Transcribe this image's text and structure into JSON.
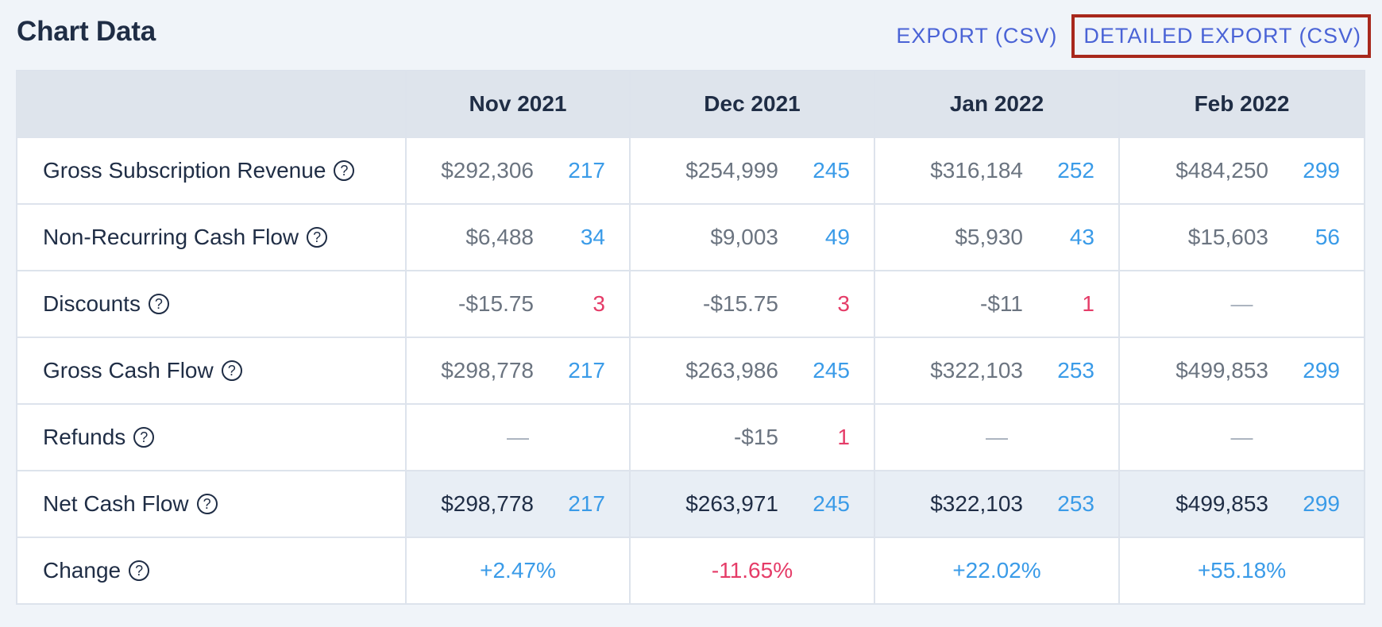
{
  "title": "Chart Data",
  "exports": {
    "export_csv": "EXPORT (CSV)",
    "detailed_export_csv": "DETAILED EXPORT (CSV)"
  },
  "help_glyph": "?",
  "columns": [
    "Nov 2021",
    "Dec 2021",
    "Jan 2022",
    "Feb 2022"
  ],
  "rows": [
    {
      "label": "Gross Subscription Revenue",
      "cells": [
        {
          "amount": "$292,306",
          "count": "217"
        },
        {
          "amount": "$254,999",
          "count": "245"
        },
        {
          "amount": "$316,184",
          "count": "252"
        },
        {
          "amount": "$484,250",
          "count": "299"
        }
      ]
    },
    {
      "label": "Non-Recurring Cash Flow",
      "cells": [
        {
          "amount": "$6,488",
          "count": "34"
        },
        {
          "amount": "$9,003",
          "count": "49"
        },
        {
          "amount": "$5,930",
          "count": "43"
        },
        {
          "amount": "$15,603",
          "count": "56"
        }
      ]
    },
    {
      "label": "Discounts",
      "cells": [
        {
          "amount": "-$15.75",
          "count": "3"
        },
        {
          "amount": "-$15.75",
          "count": "3"
        },
        {
          "amount": "-$11",
          "count": "1"
        },
        {
          "empty": "—"
        }
      ]
    },
    {
      "label": "Gross Cash Flow",
      "cells": [
        {
          "amount": "$298,778",
          "count": "217"
        },
        {
          "amount": "$263,986",
          "count": "245"
        },
        {
          "amount": "$322,103",
          "count": "253"
        },
        {
          "amount": "$499,853",
          "count": "299"
        }
      ]
    },
    {
      "label": "Refunds",
      "cells": [
        {
          "empty": "—"
        },
        {
          "amount": "-$15",
          "count": "1"
        },
        {
          "empty": "—"
        },
        {
          "empty": "—"
        }
      ]
    },
    {
      "label": "Net Cash Flow",
      "cells": [
        {
          "amount": "$298,778",
          "count": "217"
        },
        {
          "amount": "$263,971",
          "count": "245"
        },
        {
          "amount": "$322,103",
          "count": "253"
        },
        {
          "amount": "$499,853",
          "count": "299"
        }
      ]
    },
    {
      "label": "Change",
      "cells": [
        {
          "change": "+2.47%"
        },
        {
          "change": "-11.65%"
        },
        {
          "change": "+22.02%"
        },
        {
          "change": "+55.18%"
        }
      ]
    }
  ],
  "colors": {
    "positive": "#3a9be8",
    "negative": "#e53c68",
    "highlight_border": "#a8281c",
    "link": "#4a63d6"
  }
}
